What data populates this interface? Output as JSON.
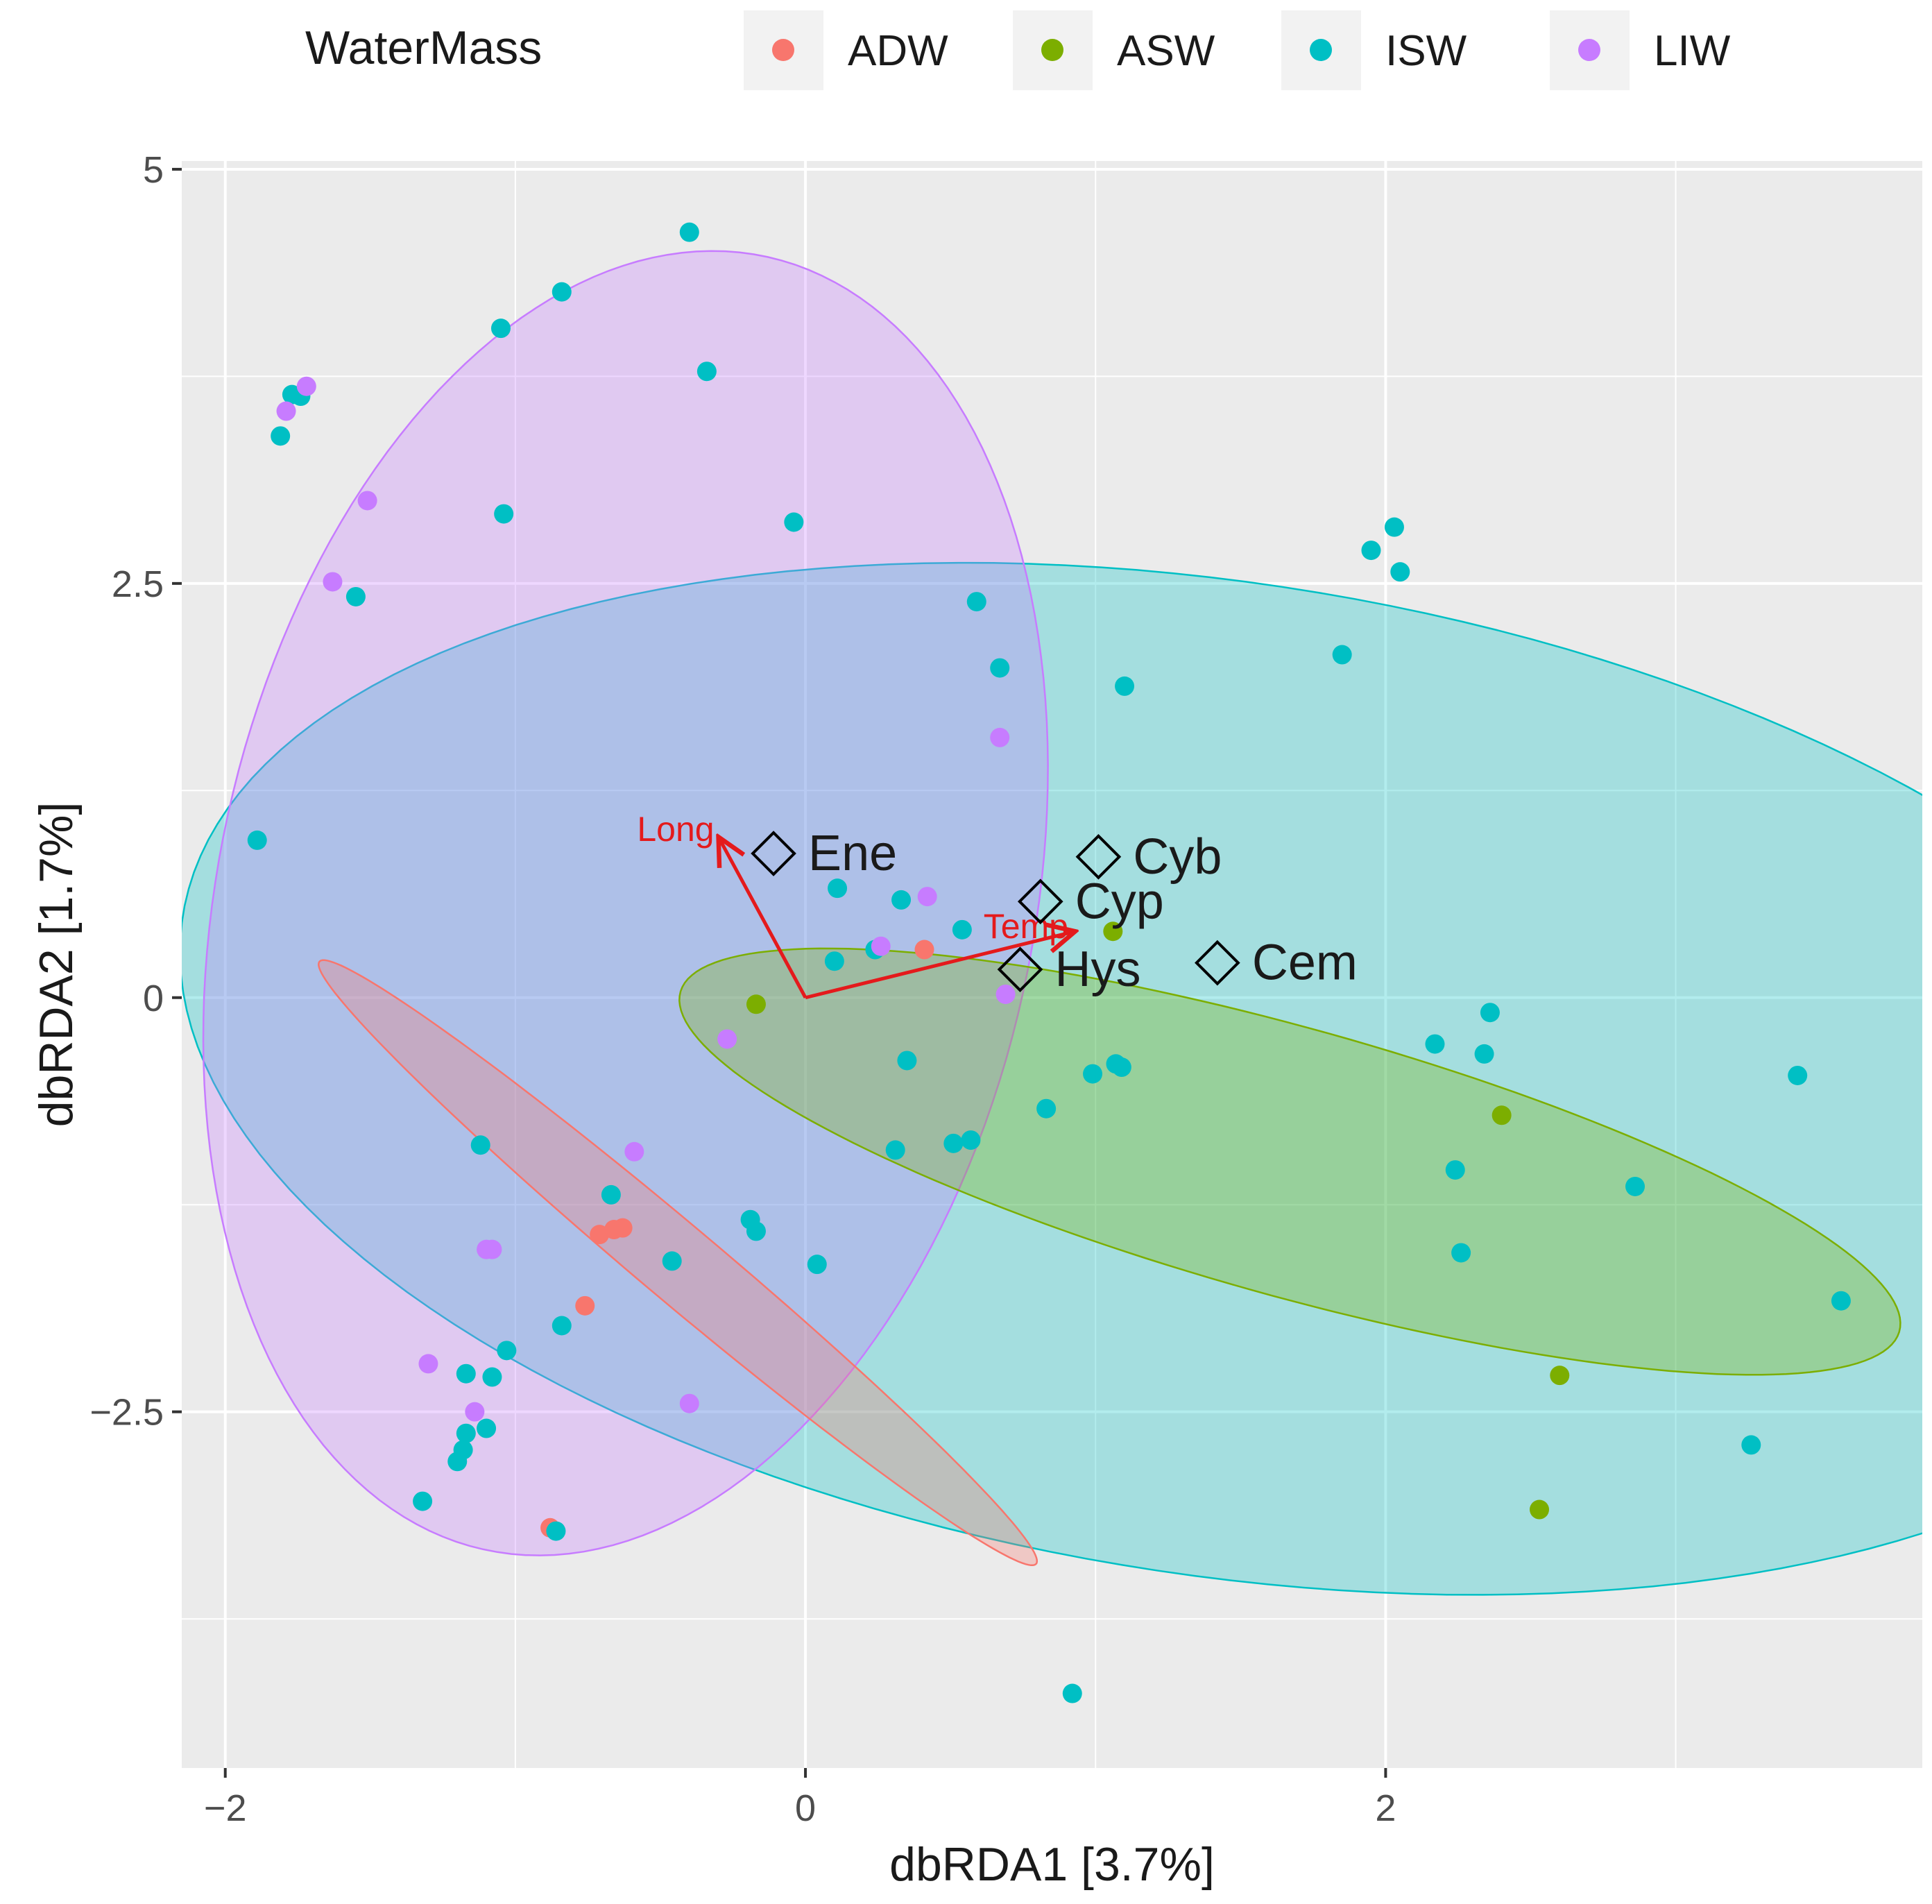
{
  "chart_data": {
    "type": "scatter",
    "title": "",
    "xlabel": "dbRDA1 [3.7%]",
    "ylabel": "dbRDA2 [1.7%]",
    "xlim": [
      -2.15,
      3.85
    ],
    "ylim": [
      -4.65,
      5.05
    ],
    "x_ticks": [
      -2,
      0,
      2
    ],
    "x_tick_labels": [
      "−2",
      "0",
      "2"
    ],
    "y_ticks": [
      -2.5,
      0,
      2.5,
      5
    ],
    "y_tick_labels": [
      "−2.5",
      "0",
      "2.5",
      "5"
    ],
    "grid": true,
    "legend": {
      "title": "WaterMass",
      "position": "top",
      "entries": [
        "ADW",
        "ASW",
        "ISW",
        "LIW"
      ]
    },
    "colors": {
      "ADW": "#f8766d",
      "ASW": "#7cae00",
      "ISW": "#00bfc4",
      "LIW": "#c77cff",
      "vector": "#e41a1c",
      "panel": "#ebebeb",
      "grid": "#ffffff"
    },
    "ellipses": [
      {
        "group": "ISW",
        "cx": 1.43,
        "cy": -0.49,
        "rx": 3.8,
        "ry": 2.85,
        "angle": -30
      },
      {
        "group": "LIW",
        "cx": -0.62,
        "cy": 0.57,
        "rx": 1.42,
        "ry": 3.95,
        "angle": -5
      },
      {
        "group": "ASW",
        "cx": 1.67,
        "cy": -0.99,
        "rx": 2.35,
        "ry": 0.75,
        "angle": -28
      },
      {
        "group": "ADW",
        "cx": -0.44,
        "cy": -1.6,
        "rx": 2.2,
        "ry": 0.17,
        "angle": -56
      }
    ],
    "series": [
      {
        "name": "ADW",
        "x": [
          0.41,
          -0.63,
          -0.71,
          -0.76,
          -0.88,
          -0.66
        ],
        "y": [
          0.29,
          -1.39,
          -1.43,
          -1.86,
          -3.2,
          -1.4
        ]
      },
      {
        "name": "ASW",
        "x": [
          -0.17,
          1.06,
          2.4,
          2.6,
          2.53
        ],
        "y": [
          -0.04,
          0.4,
          -0.71,
          -2.28,
          -3.09
        ]
      },
      {
        "name": "ISW",
        "x": [
          -0.4,
          -0.84,
          -1.05,
          -0.34,
          -1.81,
          -1.77,
          -1.74,
          -1.04,
          -1.55,
          -0.04,
          0.59,
          0.67,
          1.1,
          1.85,
          1.95,
          2.03,
          2.05,
          -1.89,
          0.11,
          0.33,
          0.1,
          0.54,
          0.24,
          0.35,
          0.83,
          0.99,
          1.07,
          1.09,
          0.31,
          0.51,
          0.57,
          -1.12,
          -0.67,
          -0.19,
          -0.17,
          0.04,
          -0.46,
          -0.84,
          -1.03,
          -1.17,
          -1.08,
          -1.17,
          -1.1,
          -1.18,
          -1.2,
          -1.32,
          -0.86,
          0.92,
          2.17,
          2.36,
          2.34,
          2.24,
          2.26,
          2.86,
          3.42,
          3.57,
          3.26
        ],
        "y": [
          4.62,
          4.26,
          4.04,
          3.78,
          3.39,
          3.64,
          3.63,
          2.92,
          2.42,
          2.87,
          2.39,
          1.99,
          1.88,
          2.07,
          2.7,
          2.84,
          2.57,
          0.95,
          0.66,
          0.59,
          0.22,
          0.41,
          0.29,
          -0.38,
          -0.67,
          -0.46,
          -0.4,
          -0.42,
          -0.92,
          -0.88,
          -0.86,
          -0.89,
          -1.19,
          -1.34,
          -1.41,
          -1.61,
          -1.59,
          -1.98,
          -2.13,
          -2.27,
          -2.29,
          -2.63,
          -2.6,
          -2.73,
          -2.8,
          -3.04,
          -3.22,
          -4.2,
          -0.28,
          -0.09,
          -0.34,
          -1.04,
          -1.54,
          -1.14,
          -0.47,
          -1.83,
          -2.7
        ]
      },
      {
        "name": "LIW",
        "x": [
          -1.72,
          -1.79,
          -1.51,
          -1.63,
          0.67,
          0.42,
          0.26,
          0.69,
          -0.27,
          -0.59,
          -1.08,
          -1.1,
          -1.3,
          -1.14,
          -0.4
        ],
        "y": [
          3.69,
          3.54,
          3.0,
          2.51,
          1.57,
          0.61,
          0.31,
          0.02,
          -0.25,
          -0.93,
          -1.52,
          -1.52,
          -2.21,
          -2.5,
          -2.45
        ]
      }
    ],
    "vectors": [
      {
        "label": "Long",
        "x": -0.3,
        "y": 0.97
      },
      {
        "label": "Temp",
        "x": 0.93,
        "y": 0.4
      }
    ],
    "species": [
      {
        "label": "Ene",
        "x": -0.11,
        "y": 0.87
      },
      {
        "label": "Cyb",
        "x": 1.01,
        "y": 0.85
      },
      {
        "label": "Cyp",
        "x": 0.81,
        "y": 0.58
      },
      {
        "label": "Hys",
        "x": 0.74,
        "y": 0.17
      },
      {
        "label": "Cem",
        "x": 1.42,
        "y": 0.21
      }
    ]
  }
}
